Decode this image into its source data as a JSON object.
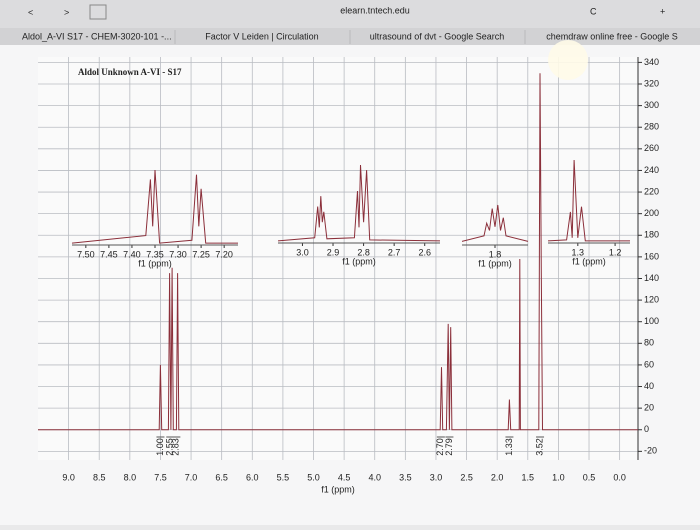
{
  "browser": {
    "url": "elearn.tntech.edu",
    "tabs": [
      "Aldol_A-VI S17 - CHEM-3020-101 -...",
      "Factor V Leiden | Circulation",
      "ultrasound of dvt - Google Search",
      "chemdraw online free - Google S"
    ]
  },
  "chart_data": [
    {
      "type": "line",
      "title": "Aldol Unknown A-VI - S17",
      "xlabel": "f1 (ppm)",
      "xlim": [
        9.5,
        -0.3
      ],
      "xticks": [
        {
          "value": 9,
          "label": "9.0"
        },
        8.5,
        {
          "value": 8,
          "label": "8.0"
        },
        7.5,
        {
          "value": 7,
          "label": "7.0"
        },
        6.5,
        {
          "value": 6,
          "label": "6.0"
        },
        5.5,
        {
          "value": 5,
          "label": "5.0"
        },
        4.5,
        {
          "value": 4,
          "label": "4.0"
        },
        3.5,
        {
          "value": 3,
          "label": "3.0"
        },
        2.5,
        {
          "value": 2,
          "label": "2.0"
        },
        1.5,
        {
          "value": 1,
          "label": "1.0"
        },
        0.5,
        {
          "value": 0,
          "label": "0.0"
        }
      ],
      "ylim": [
        -28,
        345
      ],
      "yticks": [
        -20,
        0,
        20,
        40,
        60,
        80,
        100,
        120,
        140,
        160,
        180,
        200,
        220,
        240,
        260,
        280,
        300,
        320,
        340
      ],
      "grid": true,
      "color": "#8b2f3a",
      "series": [
        {
          "x": [
            9.5,
            7.52,
            7.5,
            7.48,
            7.37,
            7.35,
            7.33,
            7.31,
            7.29,
            7.24,
            7.22,
            7.2,
            2.93,
            2.91,
            2.89,
            2.83,
            2.8,
            2.78,
            2.76,
            2.74,
            1.82,
            1.8,
            1.78,
            1.64,
            1.63,
            1.62,
            1.32,
            1.3,
            1.28,
            1.26,
            -0.3
          ],
          "values": [
            0,
            0,
            60,
            0,
            0,
            145,
            0,
            150,
            0,
            0,
            145,
            0,
            0,
            58,
            0,
            0,
            98,
            0,
            95,
            0,
            0,
            28,
            0,
            0,
            158,
            0,
            0,
            330,
            145,
            0,
            0
          ]
        }
      ],
      "integrals": [
        {
          "x": 7.5,
          "label": "1.00"
        },
        {
          "x": 7.34,
          "label": "2.55"
        },
        {
          "x": 7.24,
          "label": "2.83"
        },
        {
          "x": 2.92,
          "label": "2.70"
        },
        {
          "x": 2.78,
          "label": "2.79"
        },
        {
          "x": 1.8,
          "label": "1.33"
        },
        {
          "x": 1.3,
          "label": "3.52"
        }
      ]
    },
    {
      "type": "line",
      "xlabel": "f1 (ppm)",
      "xlim": [
        7.53,
        7.17
      ],
      "color": "#8b2f3a",
      "xticks": [
        {
          "value": 7.5,
          "label": "7.50"
        },
        7.45,
        {
          "value": 7.4,
          "label": "7.40"
        },
        7.35,
        {
          "value": 7.3,
          "label": "7.30"
        },
        7.25,
        {
          "value": 7.2,
          "label": "7.20"
        }
      ],
      "series": [
        {
          "x": [
            7.53,
            7.37,
            7.36,
            7.355,
            7.35,
            7.34,
            7.27,
            7.26,
            7.255,
            7.25,
            7.24,
            7.17
          ],
          "values": [
            2,
            10,
            70,
            20,
            80,
            2,
            5,
            75,
            20,
            60,
            2,
            2
          ]
        }
      ]
    },
    {
      "type": "line",
      "xlabel": "f1 (ppm)",
      "xlim": [
        3.08,
        2.55
      ],
      "color": "#8b2f3a",
      "xticks": [
        {
          "value": 3,
          "label": "3.0"
        },
        2.9,
        2.8,
        2.7,
        2.6
      ],
      "series": [
        {
          "x": [
            3.08,
            2.96,
            2.95,
            2.945,
            2.94,
            2.935,
            2.93,
            2.92,
            2.83,
            2.82,
            2.815,
            2.81,
            2.8,
            2.79,
            2.78,
            2.55
          ],
          "values": [
            2,
            5,
            35,
            15,
            45,
            20,
            30,
            4,
            5,
            50,
            15,
            75,
            20,
            70,
            3,
            2
          ]
        }
      ]
    },
    {
      "type": "line",
      "xlabel": "f1 (ppm)",
      "xlim": [
        1.92,
        1.68
      ],
      "color": "#8b2f3a",
      "xticks": [
        1.8
      ],
      "series": [
        {
          "x": [
            1.92,
            1.84,
            1.83,
            1.82,
            1.81,
            1.8,
            1.79,
            1.78,
            1.77,
            1.76,
            1.68
          ],
          "values": [
            2,
            5,
            12,
            8,
            20,
            10,
            22,
            8,
            15,
            5,
            2
          ]
        }
      ]
    },
    {
      "type": "line",
      "xlabel": "f1 (ppm)",
      "xlim": [
        1.38,
        1.16
      ],
      "color": "#8b2f3a",
      "xticks": [
        1.3,
        1.2
      ],
      "series": [
        {
          "x": [
            1.38,
            1.33,
            1.32,
            1.315,
            1.31,
            1.3,
            1.29,
            1.28,
            1.16
          ],
          "values": [
            2,
            3,
            30,
            5,
            80,
            5,
            35,
            2,
            2
          ]
        }
      ]
    }
  ]
}
